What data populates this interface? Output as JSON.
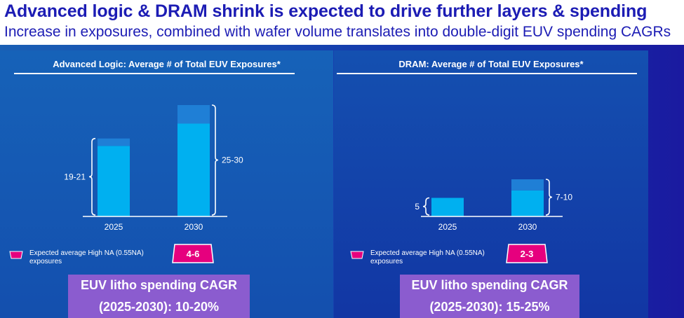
{
  "header": {
    "title": "Advanced logic & DRAM shrink is expected to drive further layers & spending",
    "subtitle": "Increase in exposures, combined with wafer volume translates into double-digit EUV spending CAGRs"
  },
  "colors": {
    "title": "#1c1cb4",
    "bar_base": "#00b0f0",
    "bar_range": "#1f7fd6",
    "badge": "#e6007e",
    "cagr_box": "#8b5ccf"
  },
  "panels": [
    {
      "title": "Advanced Logic: Average # of Total EUV Exposures*",
      "legend": "Expected average High NA (0.55NA) exposures",
      "badge": "4-6",
      "cagr_line1": "EUV litho spending CAGR",
      "cagr_line2": "(2025-2030): 10-20%"
    },
    {
      "title": "DRAM: Average # of Total EUV Exposures*",
      "legend": "Expected average High NA (0.55NA) exposures",
      "badge": "2-3",
      "cagr_line1": "EUV litho spending CAGR",
      "cagr_line2": "(2025-2030): 15-25%"
    }
  ],
  "chart_data": [
    {
      "type": "bar",
      "title": "Advanced Logic: Average # of Total EUV Exposures*",
      "categories": [
        "2025",
        "2030"
      ],
      "series": [
        {
          "values": [
            19,
            25
          ]
        },
        {
          "values": [
            2,
            5
          ]
        }
      ],
      "range_labels": [
        "19-21",
        "25-30"
      ],
      "ylim": [
        0,
        30
      ]
    },
    {
      "type": "bar",
      "title": "DRAM: Average # of Total EUV Exposures*",
      "categories": [
        "2025",
        "2030"
      ],
      "series": [
        {
          "values": [
            5,
            7
          ]
        },
        {
          "values": [
            0,
            3
          ]
        }
      ],
      "range_labels": [
        "5",
        "7-10"
      ],
      "ylim": [
        0,
        30
      ]
    }
  ]
}
